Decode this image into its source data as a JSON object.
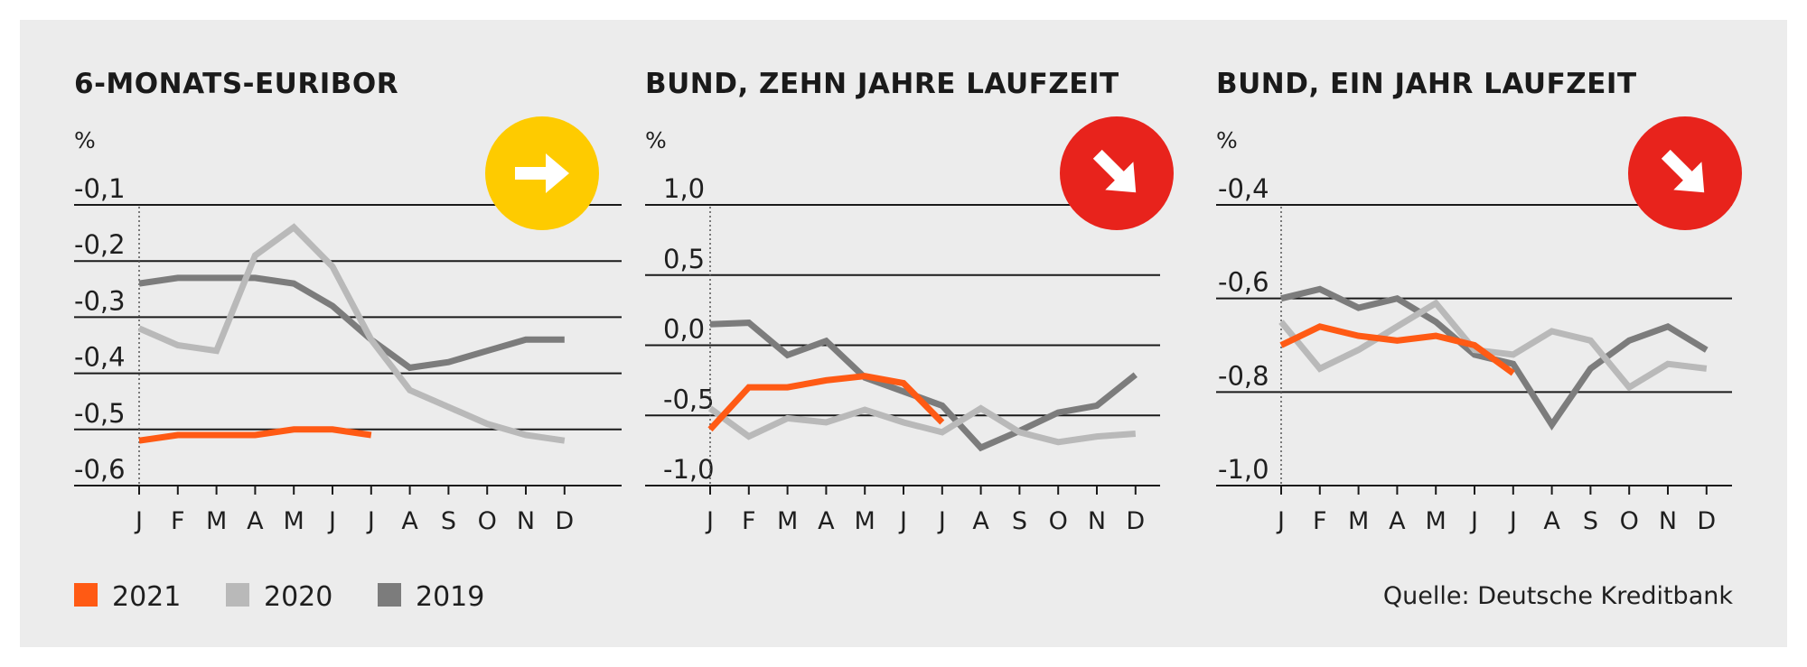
{
  "months": [
    "J",
    "F",
    "M",
    "A",
    "M",
    "J",
    "J",
    "A",
    "S",
    "O",
    "N",
    "D"
  ],
  "legend": [
    {
      "label": "2021",
      "color": "#ff5a14"
    },
    {
      "label": "2020",
      "color": "#b9b9b9"
    },
    {
      "label": "2019",
      "color": "#7c7c7c"
    }
  ],
  "source": "Quelle: Deutsche Kreditbank",
  "colors": {
    "y2021": "#ff5a14",
    "y2020": "#b9b9b9",
    "y2019": "#7c7c7c",
    "arrow_flat": "#fecb00",
    "arrow_down": "#e8231c"
  },
  "chart_data": [
    {
      "type": "line",
      "title": "6-MONATS-EURIBOR",
      "unit": "%",
      "trend": "flat",
      "trend_icon": "arrow-right-icon",
      "ylim": [
        -0.6,
        -0.1
      ],
      "yticks": [
        -0.1,
        -0.2,
        -0.3,
        -0.4,
        -0.5,
        -0.6
      ],
      "ytick_labels": [
        "-0,1",
        "-0,2",
        "-0,3",
        "-0,4",
        "-0,5",
        "-0,6"
      ],
      "series": [
        {
          "name": "2021",
          "values": [
            -0.52,
            -0.51,
            -0.51,
            -0.51,
            -0.5,
            -0.5,
            -0.51
          ]
        },
        {
          "name": "2020",
          "values": [
            -0.32,
            -0.35,
            -0.36,
            -0.19,
            -0.14,
            -0.21,
            -0.34,
            -0.43,
            -0.46,
            -0.49,
            -0.51,
            -0.52
          ]
        },
        {
          "name": "2019",
          "values": [
            -0.24,
            -0.23,
            -0.23,
            -0.23,
            -0.24,
            -0.28,
            -0.34,
            -0.39,
            -0.38,
            -0.36,
            -0.34,
            -0.34
          ]
        }
      ]
    },
    {
      "type": "line",
      "title": "BUND, ZEHN JAHRE LAUFZEIT",
      "unit": "%",
      "trend": "down",
      "trend_icon": "arrow-down-right-icon",
      "ylim": [
        -1.0,
        1.0
      ],
      "yticks": [
        1.0,
        0.5,
        0.0,
        -0.5,
        -1.0
      ],
      "ytick_labels": [
        "1,0",
        "0,5",
        "0,0",
        "-0,5",
        "-1,0"
      ],
      "series": [
        {
          "name": "2021",
          "values": [
            -0.6,
            -0.3,
            -0.3,
            -0.25,
            -0.22,
            -0.27,
            -0.55
          ]
        },
        {
          "name": "2020",
          "values": [
            -0.45,
            -0.65,
            -0.52,
            -0.55,
            -0.46,
            -0.55,
            -0.62,
            -0.45,
            -0.62,
            -0.69,
            -0.65,
            -0.63
          ]
        },
        {
          "name": "2019",
          "values": [
            0.15,
            0.16,
            -0.07,
            0.03,
            -0.23,
            -0.33,
            -0.43,
            -0.73,
            -0.61,
            -0.48,
            -0.43,
            -0.21
          ]
        }
      ]
    },
    {
      "type": "line",
      "title": "BUND, EIN JAHR LAUFZEIT",
      "unit": "%",
      "trend": "down",
      "trend_icon": "arrow-down-right-icon",
      "ylim": [
        -1.0,
        -0.4
      ],
      "yticks": [
        -0.4,
        -0.6,
        -0.8,
        -1.0
      ],
      "ytick_labels": [
        "-0,4",
        "-0,6",
        "-0,8",
        "-1,0"
      ],
      "series": [
        {
          "name": "2021",
          "values": [
            -0.7,
            -0.66,
            -0.68,
            -0.69,
            -0.68,
            -0.7,
            -0.76
          ]
        },
        {
          "name": "2020",
          "values": [
            -0.65,
            -0.75,
            -0.71,
            -0.66,
            -0.61,
            -0.71,
            -0.72,
            -0.67,
            -0.69,
            -0.79,
            -0.74,
            -0.75
          ]
        },
        {
          "name": "2019",
          "values": [
            -0.6,
            -0.58,
            -0.62,
            -0.6,
            -0.65,
            -0.72,
            -0.74,
            -0.87,
            -0.75,
            -0.69,
            -0.66,
            -0.71
          ]
        }
      ]
    }
  ]
}
